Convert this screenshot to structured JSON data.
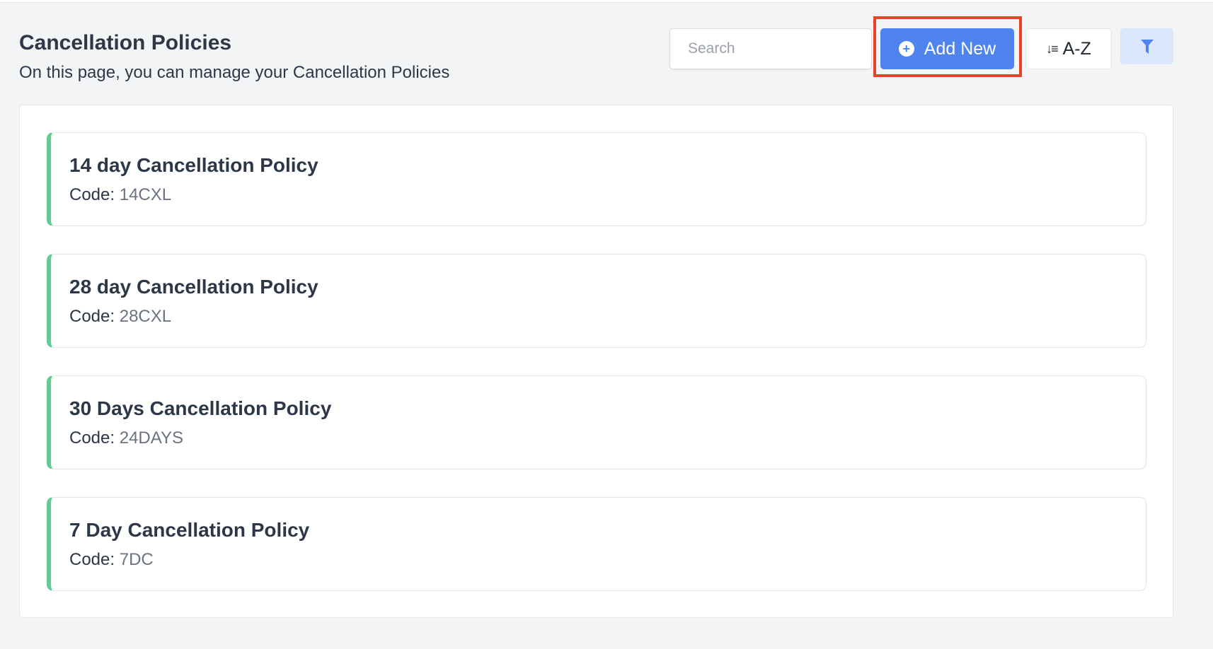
{
  "header": {
    "title": "Cancellation Policies",
    "subtitle": "On this page, you can manage your Cancellation Policies"
  },
  "toolbar": {
    "search_placeholder": "Search",
    "search_value": "",
    "add_new_label": "Add New",
    "add_new_icon": "plus-circle-icon",
    "sort_label": "A-Z",
    "sort_icon": "sort-descending-icon",
    "filter_icon": "filter-funnel-icon"
  },
  "colors": {
    "accent": "#4f84ee",
    "highlight": "#e8432a",
    "card_accent": "#63cc93"
  },
  "policies": [
    {
      "name": "14 day Cancellation Policy",
      "code_label": "Code:",
      "code": "14CXL"
    },
    {
      "name": "28 day Cancellation Policy",
      "code_label": "Code:",
      "code": "28CXL"
    },
    {
      "name": "30 Days Cancellation Policy",
      "code_label": "Code:",
      "code": "24DAYS"
    },
    {
      "name": "7 Day Cancellation Policy",
      "code_label": "Code:",
      "code": "7DC"
    }
  ]
}
